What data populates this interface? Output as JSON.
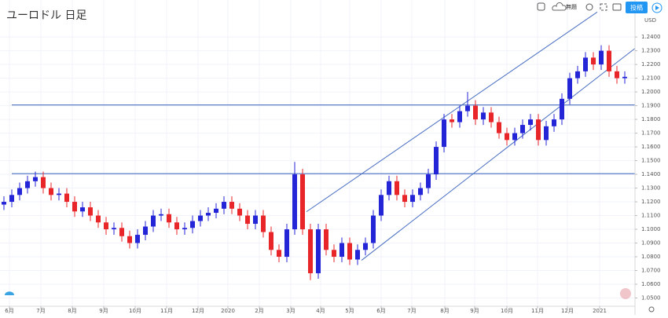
{
  "toolbar": {
    "untitled": "無題",
    "publish": "投稿"
  },
  "chart_data": {
    "type": "candlestick",
    "title": "ユーロドル 日足",
    "ylabel": "USD",
    "up_color": "#2525d8",
    "down_color": "#e8262a",
    "grid": true,
    "x": [
      0,
      1,
      2,
      3,
      4,
      5,
      6,
      7,
      8,
      9,
      10,
      11,
      12,
      13,
      14,
      15,
      16,
      17,
      18,
      19,
      20,
      21,
      22,
      23,
      24,
      25,
      26,
      27,
      28,
      29,
      30,
      31,
      32,
      33,
      34,
      35,
      36,
      37,
      38,
      39,
      40,
      41,
      42,
      43,
      44,
      45,
      46,
      47,
      48,
      49,
      50,
      51,
      52,
      53,
      54,
      55,
      56,
      57,
      58,
      59,
      60,
      61,
      62,
      63,
      64,
      65,
      66,
      67,
      68,
      69,
      70,
      71,
      72,
      73,
      74,
      75,
      76,
      77,
      78,
      79
    ],
    "open": [
      1.118,
      1.12,
      1.125,
      1.13,
      1.135,
      1.138,
      1.13,
      1.125,
      1.126,
      1.12,
      1.113,
      1.116,
      1.11,
      1.105,
      1.1,
      1.101,
      1.095,
      1.09,
      1.096,
      1.102,
      1.11,
      1.111,
      1.105,
      1.1,
      1.101,
      1.106,
      1.11,
      1.112,
      1.115,
      1.12,
      1.115,
      1.11,
      1.104,
      1.11,
      1.098,
      1.085,
      1.08,
      1.1,
      1.14,
      1.1,
      1.068,
      1.1,
      1.085,
      1.08,
      1.09,
      1.078,
      1.085,
      1.09,
      1.11,
      1.125,
      1.135,
      1.125,
      1.12,
      1.125,
      1.13,
      1.14,
      1.16,
      1.18,
      1.178,
      1.186,
      1.19,
      1.18,
      1.185,
      1.178,
      1.17,
      1.165,
      1.17,
      1.176,
      1.18,
      1.165,
      1.175,
      1.18,
      1.195,
      1.21,
      1.215,
      1.225,
      1.22,
      1.23,
      1.215,
      1.21
    ],
    "high": [
      1.124,
      1.129,
      1.134,
      1.139,
      1.142,
      1.142,
      1.134,
      1.13,
      1.13,
      1.124,
      1.12,
      1.12,
      1.114,
      1.109,
      1.105,
      1.105,
      1.099,
      1.1,
      1.106,
      1.114,
      1.115,
      1.115,
      1.109,
      1.105,
      1.11,
      1.114,
      1.116,
      1.119,
      1.124,
      1.124,
      1.119,
      1.114,
      1.114,
      1.114,
      1.102,
      1.089,
      1.104,
      1.149,
      1.144,
      1.104,
      1.104,
      1.104,
      1.089,
      1.094,
      1.094,
      1.089,
      1.094,
      1.114,
      1.129,
      1.139,
      1.139,
      1.129,
      1.129,
      1.134,
      1.144,
      1.164,
      1.184,
      1.184,
      1.19,
      1.2,
      1.194,
      1.189,
      1.189,
      1.182,
      1.174,
      1.174,
      1.18,
      1.184,
      1.184,
      1.179,
      1.184,
      1.199,
      1.214,
      1.219,
      1.229,
      1.229,
      1.234,
      1.234,
      1.219,
      1.215
    ],
    "low": [
      1.114,
      1.116,
      1.121,
      1.126,
      1.131,
      1.126,
      1.121,
      1.121,
      1.116,
      1.109,
      1.109,
      1.106,
      1.101,
      1.096,
      1.096,
      1.091,
      1.086,
      1.086,
      1.092,
      1.098,
      1.106,
      1.101,
      1.096,
      1.096,
      1.097,
      1.102,
      1.106,
      1.108,
      1.111,
      1.111,
      1.106,
      1.1,
      1.1,
      1.094,
      1.081,
      1.076,
      1.076,
      1.096,
      1.096,
      1.063,
      1.064,
      1.081,
      1.076,
      1.076,
      1.074,
      1.074,
      1.081,
      1.086,
      1.106,
      1.121,
      1.121,
      1.116,
      1.116,
      1.121,
      1.126,
      1.136,
      1.156,
      1.174,
      1.174,
      1.182,
      1.176,
      1.176,
      1.174,
      1.166,
      1.161,
      1.161,
      1.166,
      1.172,
      1.161,
      1.161,
      1.171,
      1.176,
      1.191,
      1.206,
      1.211,
      1.216,
      1.216,
      1.211,
      1.206,
      1.206
    ],
    "close": [
      1.12,
      1.125,
      1.13,
      1.135,
      1.138,
      1.13,
      1.125,
      1.126,
      1.12,
      1.113,
      1.116,
      1.11,
      1.105,
      1.1,
      1.101,
      1.095,
      1.09,
      1.096,
      1.102,
      1.11,
      1.111,
      1.105,
      1.1,
      1.101,
      1.106,
      1.11,
      1.112,
      1.115,
      1.12,
      1.115,
      1.11,
      1.104,
      1.11,
      1.098,
      1.085,
      1.08,
      1.1,
      1.14,
      1.1,
      1.068,
      1.1,
      1.085,
      1.08,
      1.09,
      1.078,
      1.085,
      1.09,
      1.11,
      1.125,
      1.135,
      1.125,
      1.12,
      1.125,
      1.13,
      1.14,
      1.16,
      1.18,
      1.178,
      1.186,
      1.19,
      1.18,
      1.185,
      1.178,
      1.17,
      1.165,
      1.17,
      1.176,
      1.18,
      1.165,
      1.175,
      1.18,
      1.195,
      1.21,
      1.215,
      1.225,
      1.22,
      1.23,
      1.215,
      1.21,
      1.211
    ],
    "hlines": [
      1.1405,
      1.1905
    ],
    "line_color": "#4a6fc2",
    "trendlines": [
      {
        "x": [
          45.5,
          80.5
        ],
        "y": [
          1.0774,
          1.2326
        ]
      },
      {
        "x": [
          38.5,
          75.5
        ],
        "y": [
          1.1128,
          1.2582
        ]
      }
    ],
    "xlim": [
      -0.5,
      80.3
    ],
    "ylim": [
      1.044,
      1.2555
    ],
    "xticks": [
      {
        "value": 0.7,
        "label": "6月"
      },
      {
        "value": 4.7,
        "label": "7月"
      },
      {
        "value": 8.7,
        "label": "8月"
      },
      {
        "value": 12.7,
        "label": "9月"
      },
      {
        "value": 16.7,
        "label": "10月"
      },
      {
        "value": 20.7,
        "label": "11月"
      },
      {
        "value": 24.7,
        "label": "12月"
      },
      {
        "value": 28.5,
        "label": "2020"
      },
      {
        "value": 32.5,
        "label": "2月"
      },
      {
        "value": 36.5,
        "label": "3月"
      },
      {
        "value": 40.3,
        "label": "4月"
      },
      {
        "value": 44,
        "label": "5月"
      },
      {
        "value": 48,
        "label": "6月"
      },
      {
        "value": 51.9,
        "label": "7月"
      },
      {
        "value": 56.1,
        "label": "8月"
      },
      {
        "value": 59.9,
        "label": "9月"
      },
      {
        "value": 64,
        "label": "10月"
      },
      {
        "value": 67.9,
        "label": "11月"
      },
      {
        "value": 71.7,
        "label": "12月"
      },
      {
        "value": 75.8,
        "label": "2021"
      }
    ],
    "yticks": [
      {
        "value": 1.05,
        "label": "1.0500"
      },
      {
        "value": 1.06,
        "label": "1.0600"
      },
      {
        "value": 1.07,
        "label": "1.0700"
      },
      {
        "value": 1.08,
        "label": "1.0800"
      },
      {
        "value": 1.09,
        "label": "1.0900"
      },
      {
        "value": 1.1,
        "label": "1.1000"
      },
      {
        "value": 1.11,
        "label": "1.1100"
      },
      {
        "value": 1.12,
        "label": "1.1200"
      },
      {
        "value": 1.13,
        "label": "1.1300"
      },
      {
        "value": 1.14,
        "label": "1.1400"
      },
      {
        "value": 1.15,
        "label": "1.1500"
      },
      {
        "value": 1.16,
        "label": "1.1600"
      },
      {
        "value": 1.17,
        "label": "1.1700"
      },
      {
        "value": 1.18,
        "label": "1.1800"
      },
      {
        "value": 1.19,
        "label": "1.1900"
      },
      {
        "value": 1.2,
        "label": "1.2000"
      },
      {
        "value": 1.21,
        "label": "1.2100"
      },
      {
        "value": 1.22,
        "label": "1.2200"
      },
      {
        "value": 1.23,
        "label": "1.2300"
      },
      {
        "value": 1.24,
        "label": "1.2400"
      }
    ]
  }
}
